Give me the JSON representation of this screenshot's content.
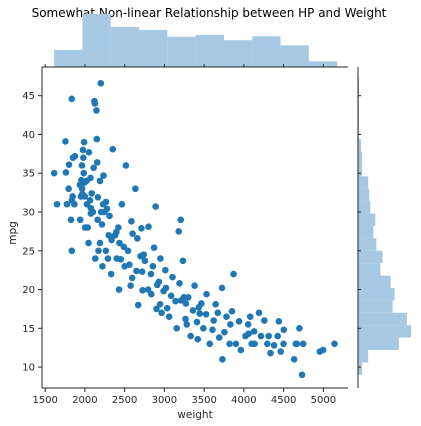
{
  "chart_data": {
    "type": "scatter",
    "title": "Somewhat Non-linear Relationship between HP and Weight",
    "xlabel": "weight",
    "ylabel": "mpg",
    "xlim": [
      1460,
      5310
    ],
    "ylim": [
      7.3,
      48.7
    ],
    "xticks": [
      1500,
      2000,
      2500,
      3000,
      3500,
      4000,
      4500,
      5000
    ],
    "yticks": [
      10,
      15,
      20,
      25,
      30,
      35,
      40,
      45
    ],
    "grid": false,
    "colors": {
      "points": "#1f77b4",
      "hist": "#a6c8e2"
    },
    "marginal_x_hist": {
      "bin_edges": [
        1613,
        1969,
        2325,
        2681,
        3037,
        3393,
        3749,
        4105,
        4461,
        4817,
        5173
      ],
      "counts": [
        30,
        93,
        70,
        65,
        53,
        56,
        47,
        54,
        38,
        10
      ]
    },
    "marginal_y_hist": {
      "bin_edges": [
        9.0,
        10.6,
        12.2,
        13.8,
        15.4,
        17.0,
        18.6,
        20.2,
        21.8,
        23.4,
        25.0,
        26.6,
        28.2,
        29.8,
        31.4,
        33.0,
        34.6,
        36.2,
        37.8,
        39.4,
        41.0,
        42.6,
        44.2,
        45.8,
        47.4
      ],
      "counts": [
        4,
        10,
        40,
        52,
        48,
        34,
        36,
        32,
        22,
        24,
        18,
        15,
        17,
        12,
        11,
        10,
        4,
        4,
        3,
        1,
        1,
        1,
        1,
        1
      ]
    },
    "points": [
      [
        1613,
        35.0
      ],
      [
        1649,
        31.0
      ],
      [
        1755,
        39.1
      ],
      [
        1760,
        35.1
      ],
      [
        1773,
        31.0
      ],
      [
        1795,
        33.0
      ],
      [
        1800,
        36.1
      ],
      [
        1825,
        29.0
      ],
      [
        1834,
        44.6
      ],
      [
        1835,
        25.0
      ],
      [
        1836,
        31.5
      ],
      [
        1845,
        32.0
      ],
      [
        1850,
        37.0
      ],
      [
        1867,
        31.0
      ],
      [
        1875,
        37.2
      ],
      [
        1937,
        33.5
      ],
      [
        1940,
        29.0
      ],
      [
        1950,
        32.0
      ],
      [
        1955,
        34.1
      ],
      [
        1963,
        36.0
      ],
      [
        1965,
        33.0
      ],
      [
        1968,
        32.3
      ],
      [
        1975,
        38.0
      ],
      [
        1980,
        37.0
      ],
      [
        1985,
        35.0
      ],
      [
        1990,
        39.0
      ],
      [
        1995,
        33.8
      ],
      [
        2000,
        32.0
      ],
      [
        2003,
        28.0
      ],
      [
        2020,
        34.0
      ],
      [
        2025,
        31.0
      ],
      [
        2035,
        28.0
      ],
      [
        2045,
        26.0
      ],
      [
        2050,
        37.7
      ],
      [
        2065,
        31.5
      ],
      [
        2070,
        34.4
      ],
      [
        2074,
        30.5
      ],
      [
        2075,
        29.8
      ],
      [
        2085,
        32.4
      ],
      [
        2100,
        30.0
      ],
      [
        2110,
        35.7
      ],
      [
        2120,
        44.3
      ],
      [
        2125,
        44.0
      ],
      [
        2130,
        24.0
      ],
      [
        2145,
        43.1
      ],
      [
        2150,
        39.4
      ],
      [
        2155,
        36.4
      ],
      [
        2160,
        29.0
      ],
      [
        2164,
        31.9
      ],
      [
        2171,
        25.0
      ],
      [
        2189,
        26.0
      ],
      [
        2190,
        34.0
      ],
      [
        2200,
        46.6
      ],
      [
        2205,
        30.0
      ],
      [
        2215,
        28.4
      ],
      [
        2220,
        23.0
      ],
      [
        2228,
        31.0
      ],
      [
        2234,
        34.7
      ],
      [
        2245,
        30.0
      ],
      [
        2264,
        25.0
      ],
      [
        2265,
        31.3
      ],
      [
        2278,
        30.4
      ],
      [
        2290,
        24.0
      ],
      [
        2300,
        27.0
      ],
      [
        2310,
        29.5
      ],
      [
        2330,
        22.0
      ],
      [
        2335,
        26.4
      ],
      [
        2350,
        38.1
      ],
      [
        2379,
        27.0
      ],
      [
        2395,
        27.4
      ],
      [
        2400,
        24.0
      ],
      [
        2420,
        28.0
      ],
      [
        2430,
        20.0
      ],
      [
        2434,
        26.0
      ],
      [
        2451,
        23.9
      ],
      [
        2465,
        31.0
      ],
      [
        2490,
        25.5
      ],
      [
        2500,
        23.0
      ],
      [
        2515,
        36.0
      ],
      [
        2542,
        25.0
      ],
      [
        2560,
        23.2
      ],
      [
        2575,
        20.5
      ],
      [
        2585,
        28.8
      ],
      [
        2595,
        21.5
      ],
      [
        2600,
        27.2
      ],
      [
        2635,
        33.0
      ],
      [
        2648,
        22.4
      ],
      [
        2660,
        26.6
      ],
      [
        2670,
        18.0
      ],
      [
        2700,
        24.3
      ],
      [
        2711,
        27.9
      ],
      [
        2720,
        22.3
      ],
      [
        2725,
        19.9
      ],
      [
        2740,
        24.5
      ],
      [
        2755,
        23.7
      ],
      [
        2795,
        20.0
      ],
      [
        2800,
        28.1
      ],
      [
        2830,
        22.0
      ],
      [
        2835,
        19.4
      ],
      [
        2855,
        23.0
      ],
      [
        2870,
        25.4
      ],
      [
        2890,
        30.7
      ],
      [
        2900,
        17.5
      ],
      [
        2910,
        20.6
      ],
      [
        2930,
        21.0
      ],
      [
        2945,
        18.1
      ],
      [
        2950,
        24.0
      ],
      [
        2965,
        17.0
      ],
      [
        2990,
        19.8
      ],
      [
        3012,
        22.5
      ],
      [
        3020,
        20.2
      ],
      [
        3035,
        17.6
      ],
      [
        3060,
        16.5
      ],
      [
        3085,
        19.2
      ],
      [
        3102,
        21.6
      ],
      [
        3140,
        18.5
      ],
      [
        3155,
        15.0
      ],
      [
        3180,
        27.5
      ],
      [
        3190,
        20.8
      ],
      [
        3205,
        29.0
      ],
      [
        3210,
        18.6
      ],
      [
        3233,
        23.7
      ],
      [
        3245,
        19.0
      ],
      [
        3265,
        16.2
      ],
      [
        3270,
        18.2
      ],
      [
        3282,
        15.5
      ],
      [
        3300,
        19.0
      ],
      [
        3330,
        14.0
      ],
      [
        3360,
        17.3
      ],
      [
        3380,
        20.5
      ],
      [
        3410,
        15.8
      ],
      [
        3420,
        13.6
      ],
      [
        3432,
        17.7
      ],
      [
        3445,
        16.9
      ],
      [
        3465,
        18.2
      ],
      [
        3490,
        15.0
      ],
      [
        3525,
        16.8
      ],
      [
        3530,
        19.4
      ],
      [
        3570,
        13.0
      ],
      [
        3605,
        14.8
      ],
      [
        3620,
        16.0
      ],
      [
        3645,
        18.1
      ],
      [
        3672,
        17.0
      ],
      [
        3690,
        13.8
      ],
      [
        3725,
        20.2
      ],
      [
        3730,
        11.0
      ],
      [
        3755,
        14.5
      ],
      [
        3781,
        16.5
      ],
      [
        3820,
        13.0
      ],
      [
        3830,
        15.5
      ],
      [
        3850,
        17.2
      ],
      [
        3870,
        22.0
      ],
      [
        3900,
        13.0
      ],
      [
        3940,
        15.9
      ],
      [
        3962,
        12.2
      ],
      [
        4020,
        14.0
      ],
      [
        4054,
        15.5
      ],
      [
        4060,
        14.3
      ],
      [
        4080,
        16.5
      ],
      [
        4098,
        13.0
      ],
      [
        4129,
        14.6
      ],
      [
        4135,
        13.0
      ],
      [
        4190,
        17.0
      ],
      [
        4215,
        14.0
      ],
      [
        4257,
        16.0
      ],
      [
        4295,
        13.0
      ],
      [
        4312,
        14.0
      ],
      [
        4335,
        11.8
      ],
      [
        4380,
        12.8
      ],
      [
        4425,
        14.0
      ],
      [
        4440,
        15.9
      ],
      [
        4464,
        12.0
      ],
      [
        4499,
        13.0
      ],
      [
        4502,
        14.8
      ],
      [
        4633,
        11.0
      ],
      [
        4654,
        13.0
      ],
      [
        4668,
        13.0
      ],
      [
        4699,
        15.0
      ],
      [
        4732,
        9.0
      ],
      [
        4746,
        13.0
      ],
      [
        4955,
        12.0
      ],
      [
        4997,
        12.2
      ],
      [
        5140,
        13.0
      ]
    ]
  }
}
